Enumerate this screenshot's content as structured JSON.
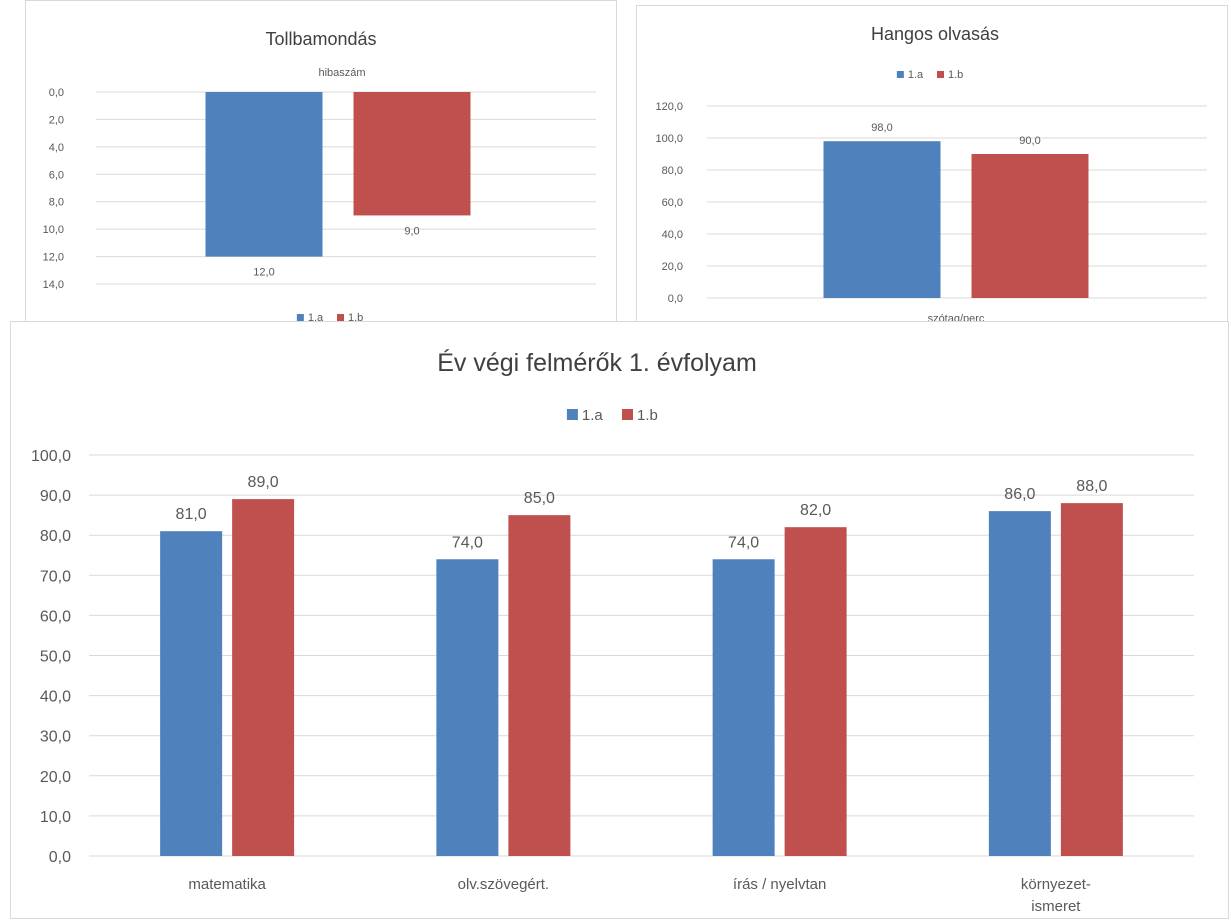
{
  "colors": {
    "a": "#4f81bd",
    "b": "#c0504d",
    "grid": "#d9d9d9",
    "text": "#595959"
  },
  "chart_data": [
    {
      "id": "tollbamondas",
      "type": "bar",
      "title": "Tollbamondás",
      "categories": [
        "hibaszám"
      ],
      "series": [
        {
          "name": "1.a",
          "values": [
            12.0
          ]
        },
        {
          "name": "1.b",
          "values": [
            9.0
          ]
        }
      ],
      "value_labels": [
        "12,0",
        "9,0"
      ],
      "ylim": [
        0,
        14
      ],
      "y_ticks": [
        "0,0",
        "2,0",
        "4,0",
        "6,0",
        "8,0",
        "10,0",
        "12,0",
        "14,0"
      ],
      "y_reversed": true,
      "legend": [
        "1.a",
        "1.b"
      ],
      "legend_position": "bottom",
      "grid": true
    },
    {
      "id": "hangos_olvasas",
      "type": "bar",
      "title": "Hangos olvasás",
      "categories": [
        "szótag/perc"
      ],
      "series": [
        {
          "name": "1.a",
          "values": [
            98.0
          ]
        },
        {
          "name": "1.b",
          "values": [
            90.0
          ]
        }
      ],
      "value_labels": [
        "98,0",
        "90,0"
      ],
      "ylim": [
        0,
        120
      ],
      "y_ticks": [
        "0,0",
        "20,0",
        "40,0",
        "60,0",
        "80,0",
        "100,0",
        "120,0"
      ],
      "legend": [
        "1.a",
        "1.b"
      ],
      "legend_position": "top",
      "grid": true
    },
    {
      "id": "ev_vegi",
      "type": "bar",
      "title": "Év végi felmérők 1. évfolyam",
      "categories": [
        "matematika",
        "olv.szövegért.",
        "írás / nyelvtan",
        "környezet-ismeret"
      ],
      "category_lines": [
        [
          "matematika"
        ],
        [
          "olv.szövegért."
        ],
        [
          "írás / nyelvtan"
        ],
        [
          "környezet-",
          "ismeret"
        ]
      ],
      "series": [
        {
          "name": "1.a",
          "values": [
            81.0,
            74.0,
            74.0,
            86.0
          ]
        },
        {
          "name": "1.b",
          "values": [
            89.0,
            85.0,
            82.0,
            88.0
          ]
        }
      ],
      "value_labels": [
        [
          "81,0",
          "74,0",
          "74,0",
          "86,0"
        ],
        [
          "89,0",
          "85,0",
          "82,0",
          "88,0"
        ]
      ],
      "ylim": [
        0,
        100
      ],
      "y_ticks": [
        "0,0",
        "10,0",
        "20,0",
        "30,0",
        "40,0",
        "50,0",
        "60,0",
        "70,0",
        "80,0",
        "90,0",
        "100,0"
      ],
      "legend": [
        "1.a",
        "1.b"
      ],
      "legend_position": "top",
      "grid": true
    }
  ]
}
